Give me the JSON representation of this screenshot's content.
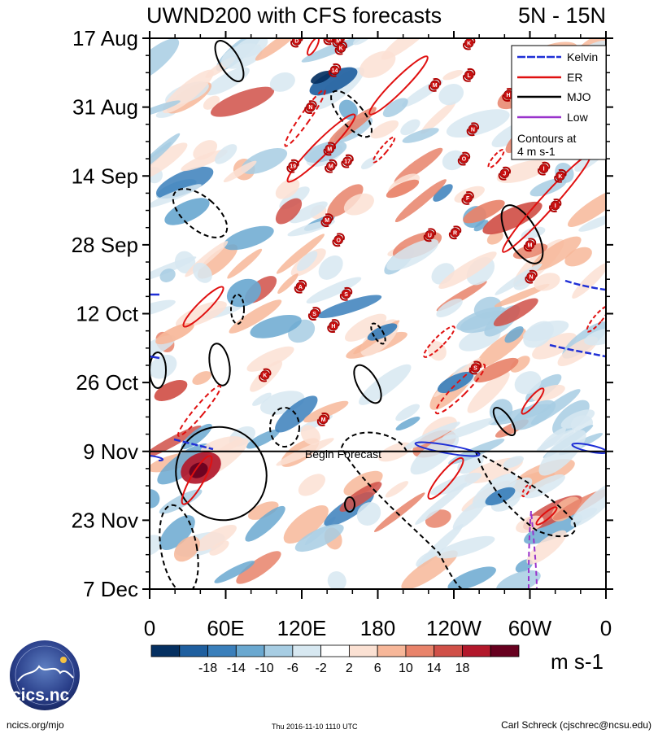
{
  "chart_data": {
    "type": "heatmap",
    "title": "UWND200 with CFS forecasts",
    "region": "5N - 15N",
    "y_ticks": [
      "17 Aug",
      "31 Aug",
      "14 Sep",
      "28 Sep",
      "12 Oct",
      "26 Oct",
      "9 Nov",
      "23 Nov",
      "7 Dec"
    ],
    "x_ticks": [
      "0",
      "60E",
      "120E",
      "180",
      "120W",
      "60W",
      "0"
    ],
    "x_range_deg": [
      0,
      360
    ],
    "y_range_days": [
      0,
      112
    ],
    "forecast_start_day": 84,
    "forecast_label": "Begin Forecast",
    "colorbar": {
      "labels": [
        "-18",
        "-14",
        "-10",
        "-6",
        "-2",
        "2",
        "6",
        "10",
        "14",
        "18"
      ],
      "units": "m s-1",
      "colors": [
        "#053061",
        "#1f5f9f",
        "#3a7fbb",
        "#6aa8d0",
        "#a7cde3",
        "#d7e8f1",
        "#ffffff",
        "#fbe1d3",
        "#f7b799",
        "#e8836a",
        "#d05048",
        "#b2182b",
        "#67001f"
      ]
    },
    "legend": {
      "items": [
        {
          "name": "Kelvin",
          "color": "#1f2fd6"
        },
        {
          "name": "ER",
          "color": "#e01010"
        },
        {
          "name": "MJO",
          "color": "#000000"
        },
        {
          "name": "Low",
          "color": "#9933cc"
        }
      ],
      "note_line1": "Contours at",
      "note_line2": "4 m s-1",
      "placement": "top-right"
    },
    "storms": [
      {
        "label": "D",
        "lon": 116,
        "day": 0.5
      },
      {
        "label": "M",
        "lon": 142,
        "day": 0
      },
      {
        "label": "M",
        "lon": 149,
        "day": 0.5
      },
      {
        "label": "K",
        "lon": 151,
        "day": 2
      },
      {
        "label": "K",
        "lon": 252,
        "day": 1
      },
      {
        "label": "14",
        "lon": 146,
        "day": 6.5
      },
      {
        "label": "L",
        "lon": 252,
        "day": 7.5
      },
      {
        "label": "M",
        "lon": 225,
        "day": 9.5
      },
      {
        "label": "H",
        "lon": 283,
        "day": 11.5
      },
      {
        "label": "N",
        "lon": 127,
        "day": 14
      },
      {
        "label": "N",
        "lon": 255,
        "day": 18.5
      },
      {
        "label": "M",
        "lon": 142,
        "day": 22.5
      },
      {
        "label": "19",
        "lon": 113,
        "day": 26
      },
      {
        "label": "M",
        "lon": 143,
        "day": 26
      },
      {
        "label": "17",
        "lon": 156,
        "day": 25
      },
      {
        "label": "O",
        "lon": 248,
        "day": 24.5
      },
      {
        "label": "J",
        "lon": 280,
        "day": 27.5
      },
      {
        "label": "I",
        "lon": 311,
        "day": 26.5
      },
      {
        "label": "K",
        "lon": 324,
        "day": 28
      },
      {
        "label": "F",
        "lon": 251,
        "day": 32.5
      },
      {
        "label": "I",
        "lon": 320,
        "day": 34
      },
      {
        "label": "M",
        "lon": 140,
        "day": 37
      },
      {
        "label": "O",
        "lon": 149,
        "day": 41
      },
      {
        "label": "U",
        "lon": 221,
        "day": 40
      },
      {
        "label": "R",
        "lon": 241,
        "day": 39.5
      },
      {
        "label": "M",
        "lon": 300,
        "day": 42
      },
      {
        "label": "N",
        "lon": 301,
        "day": 48.5
      },
      {
        "label": "A",
        "lon": 119,
        "day": 50.5
      },
      {
        "label": "S",
        "lon": 155,
        "day": 52
      },
      {
        "label": "S",
        "lon": 130,
        "day": 56
      },
      {
        "label": "H",
        "lon": 145,
        "day": 58.5
      },
      {
        "label": "S",
        "lon": 257,
        "day": 67
      },
      {
        "label": "K",
        "lon": 91,
        "day": 68.5
      },
      {
        "label": "M",
        "lon": 137,
        "day": 77.5
      }
    ]
  },
  "logo": {
    "text": "cics.nc"
  },
  "footer": {
    "left": "ncics.org/mjo",
    "middle": "Thu 2016-11-10 1110 UTC",
    "right": "Carl Schreck (cjschrec@ncsu.edu)"
  }
}
